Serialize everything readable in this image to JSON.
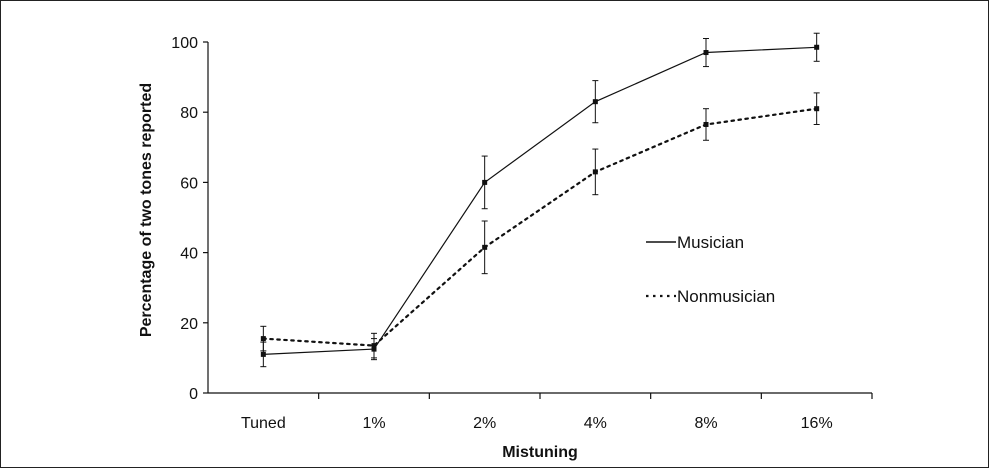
{
  "chart_data": {
    "type": "line",
    "title": "",
    "xlabel": "Mistuning",
    "ylabel": "Percentage of two tones reported",
    "categories": [
      "Tuned",
      "1%",
      "2%",
      "4%",
      "8%",
      "16%"
    ],
    "ylim": [
      0,
      100
    ],
    "yticks": [
      0,
      20,
      40,
      60,
      80,
      100
    ],
    "grid": false,
    "legend_position": "right",
    "series": [
      {
        "name": "Musician",
        "style": "solid",
        "values": [
          11,
          12.5,
          60,
          83,
          97,
          98.5
        ],
        "errors": [
          3.5,
          3,
          7.5,
          6,
          4,
          4
        ]
      },
      {
        "name": "Nonmusician",
        "style": "dotted",
        "values": [
          15.5,
          13.5,
          41.5,
          63,
          76.5,
          81
        ],
        "errors": [
          3.5,
          3.5,
          7.5,
          6.5,
          4.5,
          4.5
        ]
      }
    ]
  }
}
